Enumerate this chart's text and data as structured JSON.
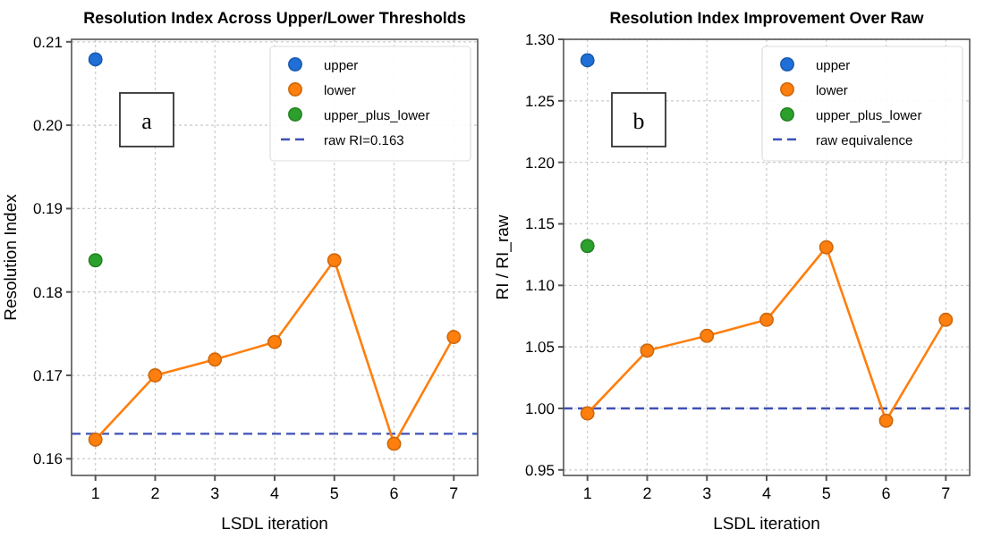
{
  "chart_data": [
    {
      "type": "line",
      "title": "Resolution Index Across Upper/Lower Thresholds",
      "xlabel": "LSDL iteration",
      "ylabel": "Resolution Index",
      "xlim": [
        0.6,
        7.4
      ],
      "xticks": [
        1,
        2,
        3,
        4,
        5,
        6,
        7
      ],
      "ylim": [
        0.158,
        0.2103
      ],
      "yticks": [
        0.16,
        0.17,
        0.18,
        0.19,
        {
          "value": 0.2,
          "label": "0.20"
        },
        0.21
      ],
      "grid": true,
      "legend": "top right",
      "marker": "circle",
      "series": [
        {
          "name": "upper",
          "type": "scatter",
          "color": "#1f6fd6",
          "x": [
            1
          ],
          "values": [
            0.2079
          ]
        },
        {
          "name": "lower",
          "color": "#ff7f0e",
          "x": [
            1,
            2,
            3,
            4,
            5,
            6,
            7
          ],
          "values": [
            0.1623,
            0.17,
            0.1719,
            0.174,
            0.1838,
            0.1618,
            0.1746
          ]
        },
        {
          "name": "upper_plus_lower",
          "type": "scatter",
          "color": "#2ca02c",
          "x": [
            1
          ],
          "values": [
            0.1838
          ]
        }
      ],
      "ref_lines": [
        {
          "axis": "y",
          "value": 0.163,
          "label": "raw RI=0.163",
          "color": "#3f51b5",
          "line_style": "dashed"
        }
      ],
      "annotations": [
        "a"
      ]
    },
    {
      "type": "line",
      "title": "Resolution Index Improvement Over Raw",
      "xlabel": "LSDL iteration",
      "ylabel": "RI / RI_raw",
      "xlim": [
        0.6,
        7.4
      ],
      "xticks": [
        1,
        2,
        3,
        4,
        5,
        6,
        7
      ],
      "ylim": [
        0.9455,
        1.3
      ],
      "yticks": [
        {
          "value": 0.95,
          "label": "0.95"
        },
        {
          "value": 1,
          "label": "1.00"
        },
        {
          "value": 1.05,
          "label": "1.05"
        },
        {
          "value": 1.1,
          "label": "1.10"
        },
        {
          "value": 1.15,
          "label": "1.15"
        },
        {
          "value": 1.2,
          "label": "1.20"
        },
        {
          "value": 1.25,
          "label": "1.25"
        },
        {
          "value": 1.3,
          "label": "1.30"
        }
      ],
      "grid": true,
      "legend": "top right",
      "marker": "circle",
      "series": [
        {
          "name": "upper",
          "type": "scatter",
          "color": "#1f6fd6",
          "x": [
            1
          ],
          "values": [
            1.283
          ]
        },
        {
          "name": "lower",
          "color": "#ff7f0e",
          "x": [
            1,
            2,
            3,
            4,
            5,
            6,
            7
          ],
          "values": [
            0.996,
            1.047,
            1.059,
            1.072,
            1.131,
            0.99,
            1.072
          ]
        },
        {
          "name": "upper_plus_lower",
          "type": "scatter",
          "color": "#2ca02c",
          "x": [
            1
          ],
          "values": [
            1.132
          ]
        }
      ],
      "ref_lines": [
        {
          "axis": "y",
          "value": 1,
          "label": "raw equivalence",
          "color": "#3f51b5",
          "line_style": "dashed"
        }
      ],
      "annotations": [
        "b"
      ]
    }
  ]
}
